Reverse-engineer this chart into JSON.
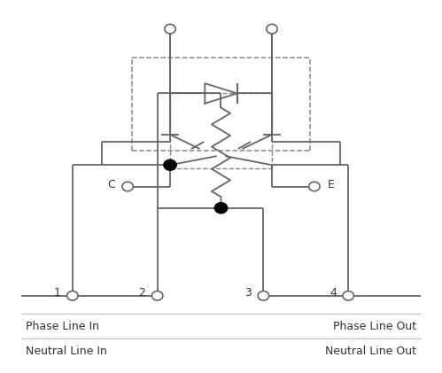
{
  "bg_color": "#ffffff",
  "line_color": "#666666",
  "dash_color": "#888888",
  "dot_color": "#000000",
  "text_color": "#333333",
  "figsize": [
    4.99,
    4.21
  ],
  "dpi": 100,
  "terminal_labels": [
    "1",
    "2",
    "3",
    "4"
  ],
  "bottom_labels_left": [
    "Phase Line In",
    "Neutral Line In"
  ],
  "bottom_labels_right": [
    "Phase Line Out",
    "Neutral Line Out"
  ]
}
